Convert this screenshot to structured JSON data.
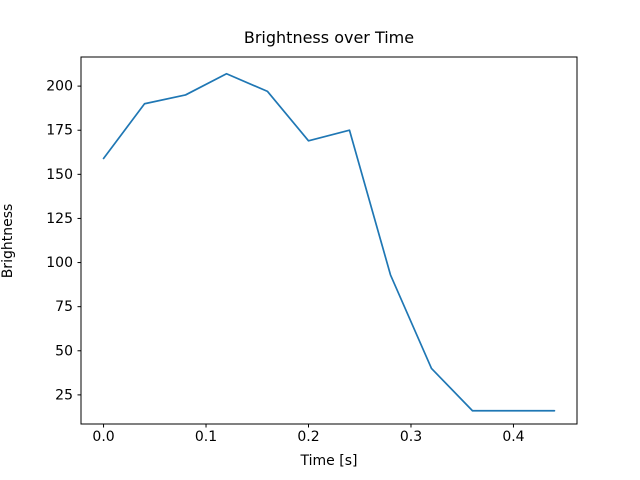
{
  "figure": {
    "background_color": "#ffffff",
    "text_color": "#000000",
    "spine_color": "#000000",
    "line_color": "#1f77b4"
  },
  "chart_data": {
    "type": "line",
    "title": "Brightness over Time",
    "xlabel": "Time [s]",
    "ylabel": "Brightness",
    "x": [
      0.0,
      0.04,
      0.08,
      0.12,
      0.16,
      0.2,
      0.24,
      0.28,
      0.32,
      0.36,
      0.4,
      0.44
    ],
    "y": [
      159,
      190,
      195,
      207,
      197,
      169,
      175,
      93,
      40,
      16,
      16,
      16
    ],
    "series": [
      {
        "name": "Brightness",
        "values": [
          159,
          190,
          195,
          207,
          197,
          169,
          175,
          93,
          40,
          16,
          16,
          16
        ]
      }
    ],
    "xlim": [
      -0.022,
      0.462
    ],
    "ylim": [
      8.5,
      216.5
    ],
    "xticks": [
      0.0,
      0.1,
      0.2,
      0.3,
      0.4
    ],
    "xtick_labels": [
      "0.0",
      "0.1",
      "0.2",
      "0.3",
      "0.4"
    ],
    "yticks": [
      25,
      50,
      75,
      100,
      125,
      150,
      175,
      200
    ],
    "ytick_labels": [
      "25",
      "50",
      "75",
      "100",
      "125",
      "150",
      "175",
      "200"
    ],
    "grid": false,
    "legend": "none",
    "marker": "none"
  }
}
